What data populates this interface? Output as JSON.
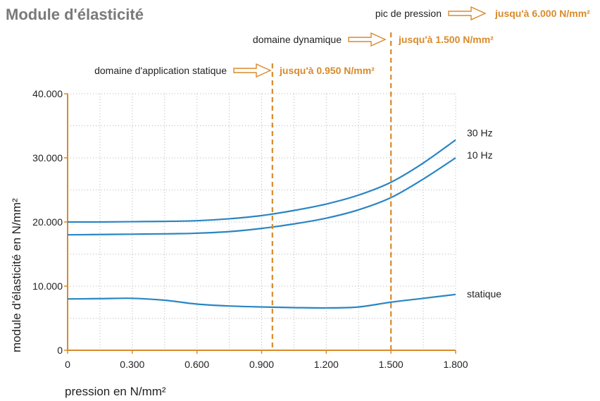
{
  "chart_data": {
    "type": "line",
    "title": "Module d'élasticité",
    "xlabel": "pression en N/mm²",
    "ylabel": "module d'élasticité en N/mm²",
    "xlim": [
      0,
      1800
    ],
    "ylim": [
      0,
      40000
    ],
    "x_ticks": [
      {
        "value": 0,
        "label": "0"
      },
      {
        "value": 300,
        "label": "0.300"
      },
      {
        "value": 600,
        "label": "0.600"
      },
      {
        "value": 900,
        "label": "0.900"
      },
      {
        "value": 1200,
        "label": "1.200"
      },
      {
        "value": 1500,
        "label": "1.500"
      },
      {
        "value": 1800,
        "label": "1.800"
      }
    ],
    "y_ticks": [
      {
        "value": 0,
        "label": "0"
      },
      {
        "value": 10000,
        "label": "10.000"
      },
      {
        "value": 20000,
        "label": "20.000"
      },
      {
        "value": 30000,
        "label": "30.000"
      },
      {
        "value": 40000,
        "label": "40.000"
      }
    ],
    "grid": {
      "x_minor_step": 150,
      "y_minor_step": 5000,
      "style": "dotted"
    },
    "series": [
      {
        "name": "30 Hz",
        "color": "#2a86c3",
        "x": [
          0,
          150,
          300,
          450,
          600,
          750,
          900,
          1050,
          1200,
          1350,
          1500,
          1650,
          1800
        ],
        "y": [
          20000,
          20000,
          20050,
          20100,
          20200,
          20500,
          21000,
          21800,
          22800,
          24200,
          26200,
          29200,
          32800
        ]
      },
      {
        "name": "10 Hz",
        "color": "#2a86c3",
        "x": [
          0,
          150,
          300,
          450,
          600,
          750,
          900,
          1050,
          1200,
          1350,
          1500,
          1650,
          1800
        ],
        "y": [
          18000,
          18050,
          18100,
          18150,
          18250,
          18500,
          19000,
          19700,
          20600,
          21900,
          23800,
          26700,
          30000
        ]
      },
      {
        "name": "statique",
        "color": "#2a86c3",
        "x": [
          0,
          150,
          300,
          450,
          600,
          750,
          900,
          1050,
          1200,
          1350,
          1500,
          1650,
          1800
        ],
        "y": [
          8000,
          8050,
          8100,
          7800,
          7200,
          6900,
          6750,
          6650,
          6600,
          6750,
          7500,
          8100,
          8700
        ]
      }
    ],
    "annotations": [
      {
        "label": "domaine d'application statique",
        "value": "jusqu'à 0.950 N/mm²",
        "x": 950,
        "line": true
      },
      {
        "label": "domaine dynamique",
        "value": "jusqu'à 1.500 N/mm²",
        "x": 1500,
        "line": true
      },
      {
        "label": "pic de pression",
        "value": "jusqu'à 6.000 N/mm²",
        "x": null,
        "line": false
      }
    ],
    "colors": {
      "line": "#2a86c3",
      "accent": "#d98a2b",
      "title": "#7a7a7a",
      "grid": "#b5b5b5"
    }
  }
}
